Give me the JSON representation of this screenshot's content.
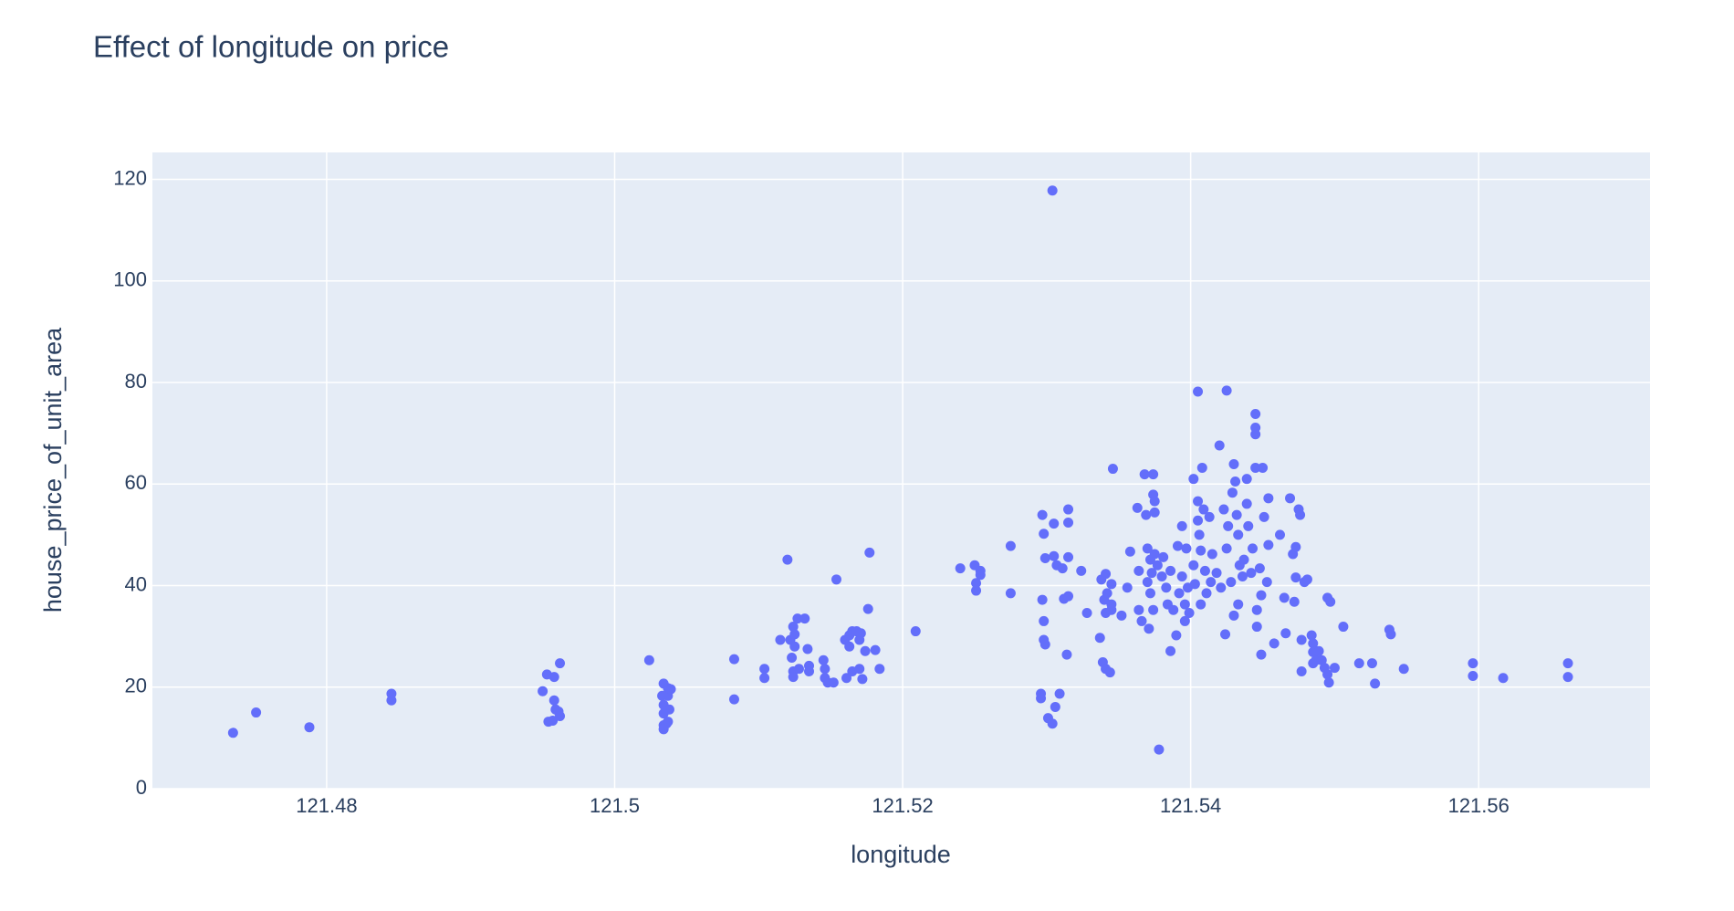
{
  "chart_data": {
    "type": "scatter",
    "title": "Effect of longitude on price",
    "x_label": "longitude",
    "y_label": "house_price_of_unit_area",
    "color": "#636efa",
    "grid": true,
    "xlim": [
      121.4679,
      121.5719
    ],
    "xticks": [
      121.48,
      121.5,
      121.52,
      121.54,
      121.56
    ],
    "ylim": [
      0,
      125.3
    ],
    "yticks": [
      0,
      20,
      40,
      60,
      80,
      100,
      120
    ],
    "x": [
      121.4735,
      121.4751,
      121.4788,
      121.4845,
      121.4845,
      121.495,
      121.4953,
      121.4958,
      121.4962,
      121.4958,
      121.4959,
      121.4962,
      121.4954,
      121.4957,
      121.4961,
      121.5024,
      121.5034,
      121.5037,
      121.5033,
      121.5037,
      121.5034,
      121.5038,
      121.5034,
      121.5037,
      121.5034,
      121.5036,
      121.5034,
      121.5039,
      121.5083,
      121.5083,
      121.5104,
      121.5104,
      121.5115,
      121.512,
      121.5122,
      121.5124,
      121.5125,
      121.5127,
      121.5132,
      121.5125,
      121.5123,
      121.5124,
      121.5124,
      121.5128,
      121.5134,
      121.5135,
      121.5135,
      121.5145,
      121.5146,
      121.5146,
      121.5148,
      121.5152,
      121.5154,
      121.516,
      121.5163,
      121.5165,
      121.5168,
      121.517,
      121.5171,
      121.5163,
      121.5161,
      121.5165,
      121.517,
      121.5172,
      121.5174,
      121.5176,
      121.5177,
      121.5181,
      121.5184,
      121.5209,
      121.524,
      121.5251,
      121.5251,
      121.525,
      121.5254,
      121.5254,
      121.5275,
      121.5275,
      121.5297,
      121.5298,
      121.5299,
      121.5297,
      121.5298,
      121.5298,
      121.5299,
      121.5296,
      121.5296,
      121.5301,
      121.5304,
      121.5304,
      121.5305,
      121.5305,
      121.5307,
      121.5306,
      121.5309,
      121.5311,
      121.5312,
      121.5314,
      121.5315,
      121.5315,
      121.5315,
      121.5315,
      121.5324,
      121.5328,
      121.5337,
      121.5338,
      121.534,
      121.5339,
      121.5341,
      121.5344,
      121.5341,
      121.5341,
      121.5342,
      121.5345,
      121.5346,
      121.5345,
      121.5345,
      121.5352,
      121.5356,
      121.5358,
      121.5363,
      121.5364,
      121.5364,
      121.5366,
      121.5368,
      121.5369,
      121.537,
      121.537,
      121.5371,
      121.5374,
      121.5374,
      121.5375,
      121.5375,
      121.5372,
      121.5373,
      121.5372,
      121.5374,
      121.5375,
      121.5377,
      121.5378,
      121.538,
      121.5381,
      121.5383,
      121.5384,
      121.5386,
      121.5386,
      121.5388,
      121.539,
      121.5391,
      121.5392,
      121.5394,
      121.5394,
      121.5396,
      121.5396,
      121.5397,
      121.5398,
      121.5399,
      121.5402,
      121.5402,
      121.5403,
      121.5405,
      121.5405,
      121.5405,
      121.5406,
      121.5407,
      121.5407,
      121.5408,
      121.5409,
      121.541,
      121.5411,
      121.5413,
      121.5414,
      121.5415,
      121.5418,
      121.542,
      121.5421,
      121.5423,
      121.5424,
      121.5425,
      121.5425,
      121.5426,
      121.5428,
      121.5429,
      121.543,
      121.543,
      121.5431,
      121.5432,
      121.5433,
      121.5433,
      121.5434,
      121.5436,
      121.5437,
      121.5439,
      121.5439,
      121.544,
      121.5442,
      121.5443,
      121.5445,
      121.5445,
      121.5445,
      121.5445,
      121.5446,
      121.5446,
      121.5448,
      121.5449,
      121.5449,
      121.545,
      121.5451,
      121.5453,
      121.5454,
      121.5454,
      121.5458,
      121.5462,
      121.5465,
      121.5466,
      121.5469,
      121.5471,
      121.5472,
      121.5473,
      121.5473,
      121.5475,
      121.5476,
      121.5477,
      121.5477,
      121.5479,
      121.5481,
      121.5484,
      121.5485,
      121.5485,
      121.5485,
      121.5487,
      121.5489,
      121.5491,
      121.5493,
      121.5495,
      121.5496,
      121.5495,
      121.5497,
      121.55,
      121.5506,
      121.5517,
      121.5526,
      121.5528,
      121.5538,
      121.5539,
      121.5548,
      121.5596,
      121.5596,
      121.5617,
      121.5662,
      121.5662
    ],
    "values": [
      11.0,
      15.0,
      12.1,
      18.7,
      17.4,
      19.2,
      22.5,
      22.0,
      24.7,
      17.4,
      15.6,
      14.3,
      13.2,
      13.4,
      15.2,
      25.3,
      20.7,
      19.8,
      18.3,
      18.3,
      16.5,
      15.6,
      14.8,
      13.2,
      12.5,
      12.8,
      11.7,
      19.6,
      25.5,
      17.6,
      23.6,
      21.8,
      29.3,
      45.1,
      29.3,
      31.9,
      30.4,
      33.5,
      33.5,
      28.0,
      25.8,
      23.1,
      22.0,
      23.6,
      27.5,
      24.2,
      23.1,
      25.3,
      23.6,
      21.8,
      20.9,
      20.9,
      41.2,
      29.3,
      30.2,
      31.0,
      31.0,
      29.3,
      30.6,
      28.0,
      21.8,
      23.1,
      23.6,
      21.6,
      27.1,
      35.4,
      46.5,
      27.3,
      23.6,
      31.0,
      43.4,
      40.5,
      39.0,
      44.0,
      42.9,
      42.1,
      47.8,
      38.5,
      53.9,
      50.2,
      45.4,
      37.2,
      33.0,
      29.3,
      28.4,
      18.7,
      17.8,
      13.9,
      12.8,
      117.8,
      52.2,
      45.8,
      44.0,
      16.1,
      18.7,
      43.4,
      37.4,
      26.4,
      55.0,
      52.4,
      45.6,
      37.9,
      42.9,
      34.6,
      29.7,
      41.2,
      37.2,
      24.9,
      23.6,
      22.9,
      42.3,
      34.6,
      38.5,
      40.3,
      63.0,
      36.3,
      35.2,
      34.1,
      39.6,
      46.7,
      55.3,
      42.9,
      35.2,
      33.0,
      61.9,
      53.9,
      47.3,
      40.7,
      31.5,
      61.9,
      57.9,
      56.6,
      54.4,
      45.1,
      42.5,
      38.5,
      35.2,
      46.2,
      44.0,
      7.7,
      41.8,
      45.6,
      39.6,
      36.3,
      27.1,
      42.9,
      35.2,
      30.2,
      47.8,
      38.5,
      51.7,
      41.8,
      36.3,
      33.0,
      47.3,
      39.6,
      34.6,
      61.0,
      44.0,
      40.3,
      78.2,
      56.6,
      52.8,
      50.0,
      46.9,
      36.3,
      63.2,
      55.0,
      42.9,
      38.5,
      53.5,
      40.7,
      46.2,
      42.5,
      67.6,
      39.6,
      55.0,
      30.4,
      47.3,
      78.4,
      51.7,
      40.7,
      58.3,
      63.9,
      34.1,
      60.5,
      53.9,
      50.0,
      36.3,
      44.0,
      41.8,
      45.1,
      61.0,
      56.1,
      51.7,
      42.5,
      47.3,
      73.8,
      71.1,
      69.8,
      63.2,
      35.2,
      31.9,
      43.4,
      26.4,
      38.1,
      63.2,
      53.5,
      40.7,
      57.2,
      48.0,
      28.6,
      50.0,
      37.6,
      30.6,
      57.2,
      46.2,
      36.8,
      47.6,
      41.6,
      55.0,
      53.9,
      23.1,
      29.3,
      40.7,
      41.2,
      30.2,
      28.6,
      26.9,
      24.7,
      25.3,
      27.1,
      25.3,
      23.8,
      22.5,
      20.9,
      37.6,
      36.8,
      23.8,
      31.9,
      24.7,
      24.7,
      20.7,
      31.3,
      30.4,
      23.6,
      24.7,
      22.2,
      21.8,
      24.7,
      22.0
    ]
  }
}
